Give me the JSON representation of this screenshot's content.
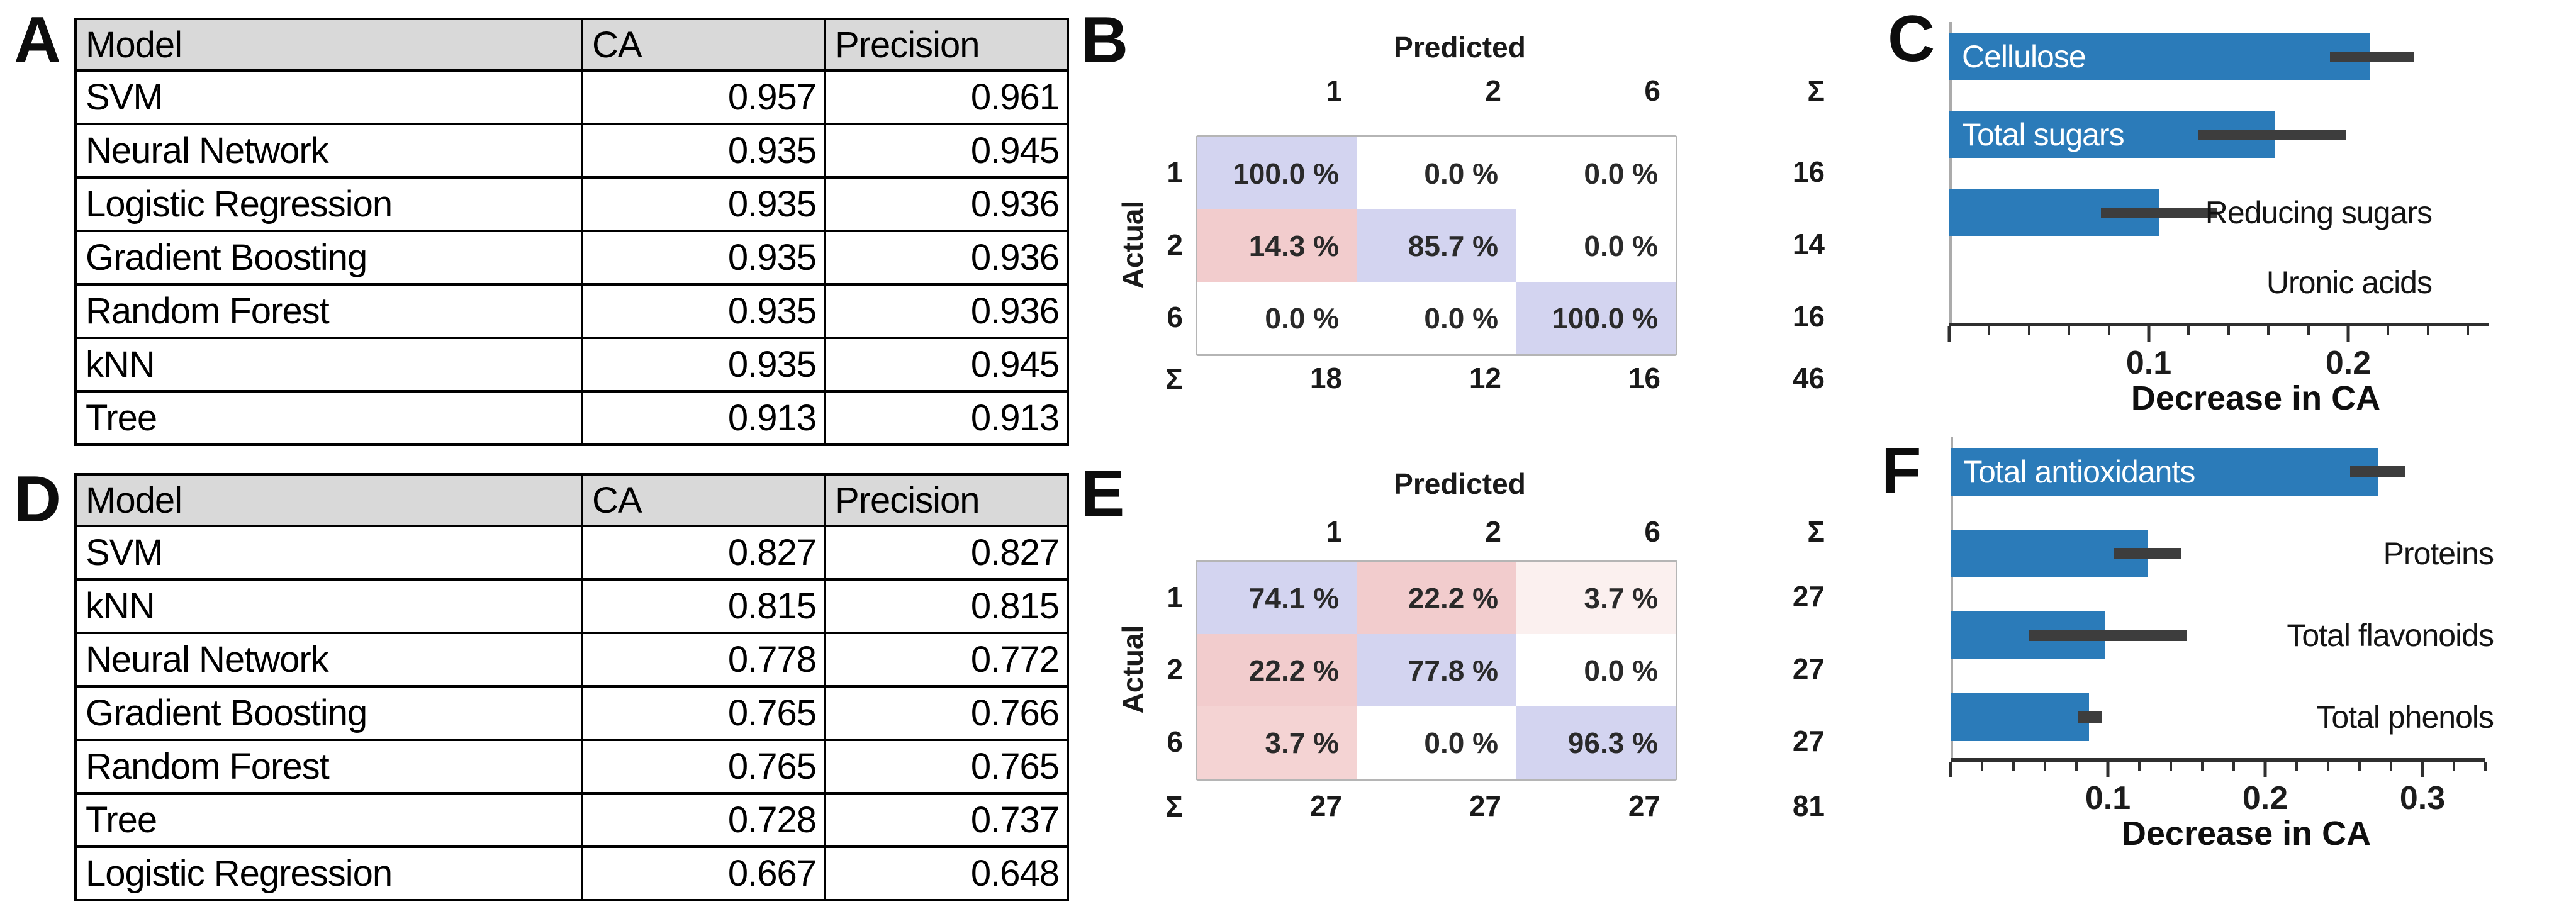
{
  "colors": {
    "bar_blue": "#2b7bb9",
    "error_bar": "#3d3d3d",
    "header_gray": "#d9d9d9",
    "cell_blue": "#d3d4f0",
    "cell_pink": "#f2cccd",
    "cell_pink_light": "#f4d3d3",
    "cell_pink_faint": "#fbf0ef",
    "white": "#ffffff"
  },
  "panel_a": {
    "label": "A",
    "table": {
      "headers": [
        "Model",
        "CA",
        "Precision"
      ],
      "rows": [
        [
          "SVM",
          "0.957",
          "0.961"
        ],
        [
          "Neural Network",
          "0.935",
          "0.945"
        ],
        [
          "Logistic Regression",
          "0.935",
          "0.936"
        ],
        [
          "Gradient Boosting",
          "0.935",
          "0.936"
        ],
        [
          "Random Forest",
          "0.935",
          "0.936"
        ],
        [
          "kNN",
          "0.935",
          "0.945"
        ],
        [
          "Tree",
          "0.913",
          "0.913"
        ]
      ]
    }
  },
  "panel_d": {
    "label": "D",
    "table": {
      "headers": [
        "Model",
        "CA",
        "Precision"
      ],
      "rows": [
        [
          "SVM",
          "0.827",
          "0.827"
        ],
        [
          "kNN",
          "0.815",
          "0.815"
        ],
        [
          "Neural Network",
          "0.778",
          "0.772"
        ],
        [
          "Gradient Boosting",
          "0.765",
          "0.766"
        ],
        [
          "Random Forest",
          "0.765",
          "0.765"
        ],
        [
          "Tree",
          "0.728",
          "0.737"
        ],
        [
          "Logistic Regression",
          "0.667",
          "0.648"
        ]
      ]
    }
  },
  "panel_b": {
    "label": "B",
    "predicted_label": "Predicted",
    "actual_label": "Actual",
    "sum_symbol": "Σ",
    "col_headers": [
      "1",
      "2",
      "6"
    ],
    "row_headers": [
      "1",
      "2",
      "6"
    ],
    "cells": [
      [
        "100.0 %",
        "0.0 %",
        "0.0 %"
      ],
      [
        "14.3 %",
        "85.7 %",
        "0.0 %"
      ],
      [
        "0.0 %",
        "0.0 %",
        "100.0 %"
      ]
    ],
    "cell_colors": [
      [
        "cell_blue",
        "white",
        "white"
      ],
      [
        "cell_pink",
        "cell_blue",
        "white"
      ],
      [
        "white",
        "white",
        "cell_blue"
      ]
    ],
    "row_sums": [
      "16",
      "14",
      "16"
    ],
    "col_sums": [
      "18",
      "12",
      "16"
    ],
    "total": "46"
  },
  "panel_e": {
    "label": "E",
    "predicted_label": "Predicted",
    "actual_label": "Actual",
    "sum_symbol": "Σ",
    "col_headers": [
      "1",
      "2",
      "6"
    ],
    "row_headers": [
      "1",
      "2",
      "6"
    ],
    "cells": [
      [
        "74.1 %",
        "22.2 %",
        "3.7 %"
      ],
      [
        "22.2 %",
        "77.8 %",
        "0.0 %"
      ],
      [
        "3.7 %",
        "0.0 %",
        "96.3 %"
      ]
    ],
    "cell_colors": [
      [
        "cell_blue",
        "cell_pink",
        "cell_pink_faint"
      ],
      [
        "cell_pink",
        "cell_blue",
        "white"
      ],
      [
        "cell_pink_light",
        "white",
        "cell_blue"
      ]
    ],
    "row_sums": [
      "27",
      "27",
      "27"
    ],
    "col_sums": [
      "27",
      "27",
      "27"
    ],
    "total": "81"
  },
  "panel_c": {
    "label": "C",
    "xlabel": "Decrease in CA",
    "bars": [
      {
        "label": "Cellulose",
        "value": 0.211,
        "err_lo": 0.191,
        "err_hi": 0.233
      },
      {
        "label": "Total sugars",
        "value": 0.163,
        "err_lo": 0.125,
        "err_hi": 0.199
      },
      {
        "label": "Reducing sugars",
        "value": 0.105,
        "err_lo": 0.076,
        "err_hi": 0.134
      },
      {
        "label": "Uronic acids",
        "value": 0.0
      }
    ],
    "axis": {
      "minors": [
        0.02,
        0.04,
        0.06,
        0.08,
        0.12,
        0.14,
        0.16,
        0.18,
        0.22,
        0.24,
        0.26
      ],
      "majors": [
        {
          "v": 0,
          "label": ""
        },
        {
          "v": 0.1,
          "label": "0.1"
        },
        {
          "v": 0.2,
          "label": "0.2"
        }
      ]
    }
  },
  "panel_f": {
    "label": "F",
    "xlabel": "Decrease in CA",
    "bars": [
      {
        "label": "Total antioxidants",
        "value": 0.272,
        "err_lo": 0.254,
        "err_hi": 0.289
      },
      {
        "label": "Proteins",
        "value": 0.125,
        "err_lo": 0.104,
        "err_hi": 0.147
      },
      {
        "label": "Total flavonoids",
        "value": 0.098,
        "err_lo": 0.05,
        "err_hi": 0.15
      },
      {
        "label": "Total phenols",
        "value": 0.088,
        "err_lo": 0.081,
        "err_hi": 0.096
      }
    ],
    "axis": {
      "minors": [
        0.02,
        0.04,
        0.06,
        0.08,
        0.12,
        0.14,
        0.16,
        0.18,
        0.22,
        0.24,
        0.26,
        0.28,
        0.32,
        0.34
      ],
      "majors": [
        {
          "v": 0,
          "label": ""
        },
        {
          "v": 0.1,
          "label": "0.1"
        },
        {
          "v": 0.2,
          "label": "0.2"
        },
        {
          "v": 0.3,
          "label": "0.3"
        }
      ]
    }
  },
  "chart_data": [
    {
      "type": "table",
      "panel": "A",
      "columns": [
        "Model",
        "CA",
        "Precision"
      ],
      "rows": [
        [
          "SVM",
          0.957,
          0.961
        ],
        [
          "Neural Network",
          0.935,
          0.945
        ],
        [
          "Logistic Regression",
          0.935,
          0.936
        ],
        [
          "Gradient Boosting",
          0.935,
          0.936
        ],
        [
          "Random Forest",
          0.935,
          0.936
        ],
        [
          "kNN",
          0.935,
          0.945
        ],
        [
          "Tree",
          0.913,
          0.913
        ]
      ]
    },
    {
      "type": "heatmap",
      "panel": "B",
      "title": "Confusion matrix, % of actual",
      "x_label": "Predicted",
      "y_label": "Actual",
      "x": [
        "1",
        "2",
        "6"
      ],
      "y": [
        "1",
        "2",
        "6"
      ],
      "values_percent": [
        [
          100.0,
          0.0,
          0.0
        ],
        [
          14.3,
          85.7,
          0.0
        ],
        [
          0.0,
          0.0,
          100.0
        ]
      ],
      "row_totals": [
        16,
        14,
        16
      ],
      "col_totals": [
        18,
        12,
        16
      ],
      "grand_total": 46
    },
    {
      "type": "bar",
      "panel": "C",
      "orientation": "horizontal",
      "categories": [
        "Cellulose",
        "Total sugars",
        "Reducing sugars",
        "Uronic acids"
      ],
      "values": [
        0.211,
        0.163,
        0.105,
        0.0
      ],
      "error_low": [
        0.191,
        0.125,
        0.076,
        null
      ],
      "error_high": [
        0.233,
        0.199,
        0.134,
        null
      ],
      "xlabel": "Decrease in CA",
      "xlim": [
        0,
        0.27
      ],
      "grid": false,
      "legend": "none"
    },
    {
      "type": "table",
      "panel": "D",
      "columns": [
        "Model",
        "CA",
        "Precision"
      ],
      "rows": [
        [
          "SVM",
          0.827,
          0.827
        ],
        [
          "kNN",
          0.815,
          0.815
        ],
        [
          "Neural Network",
          0.778,
          0.772
        ],
        [
          "Gradient Boosting",
          0.765,
          0.766
        ],
        [
          "Random Forest",
          0.765,
          0.765
        ],
        [
          "Tree",
          0.728,
          0.737
        ],
        [
          "Logistic Regression",
          0.667,
          0.648
        ]
      ]
    },
    {
      "type": "heatmap",
      "panel": "E",
      "title": "Confusion matrix, % of actual",
      "x_label": "Predicted",
      "y_label": "Actual",
      "x": [
        "1",
        "2",
        "6"
      ],
      "y": [
        "1",
        "2",
        "6"
      ],
      "values_percent": [
        [
          74.1,
          22.2,
          3.7
        ],
        [
          22.2,
          77.8,
          0.0
        ],
        [
          3.7,
          0.0,
          96.3
        ]
      ],
      "row_totals": [
        27,
        27,
        27
      ],
      "col_totals": [
        27,
        27,
        27
      ],
      "grand_total": 81
    },
    {
      "type": "bar",
      "panel": "F",
      "orientation": "horizontal",
      "categories": [
        "Total antioxidants",
        "Proteins",
        "Total flavonoids",
        "Total phenols"
      ],
      "values": [
        0.272,
        0.125,
        0.098,
        0.088
      ],
      "error_low": [
        0.254,
        0.104,
        0.05,
        0.081
      ],
      "error_high": [
        0.289,
        0.147,
        0.15,
        0.096
      ],
      "xlabel": "Decrease in CA",
      "xlim": [
        0,
        0.34
      ],
      "grid": false,
      "legend": "none"
    }
  ]
}
